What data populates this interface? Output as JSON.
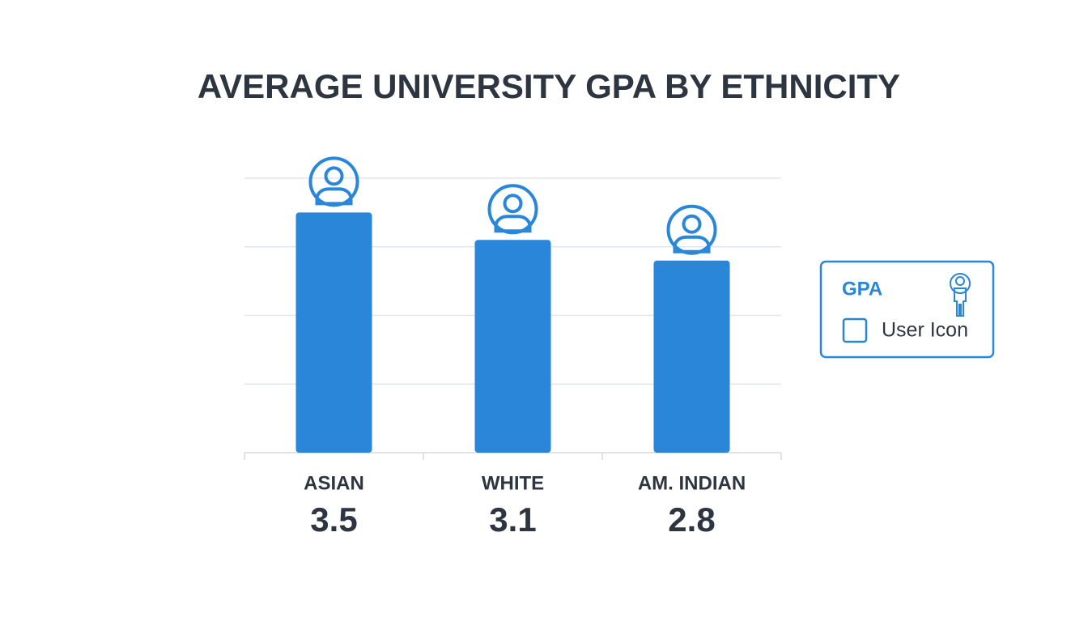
{
  "chart_data": {
    "type": "bar",
    "title": "AVERAGE UNIVERSITY GPA BY ETHNICITY",
    "categories": [
      "ASIAN",
      "WHITE",
      "AM. INDIAN"
    ],
    "values": [
      3.5,
      3.1,
      2.8
    ],
    "color": "#2a86d8",
    "ylim": [
      0,
      4
    ],
    "grid": true,
    "legend": {
      "title": "GPA",
      "label": "User Icon"
    }
  }
}
